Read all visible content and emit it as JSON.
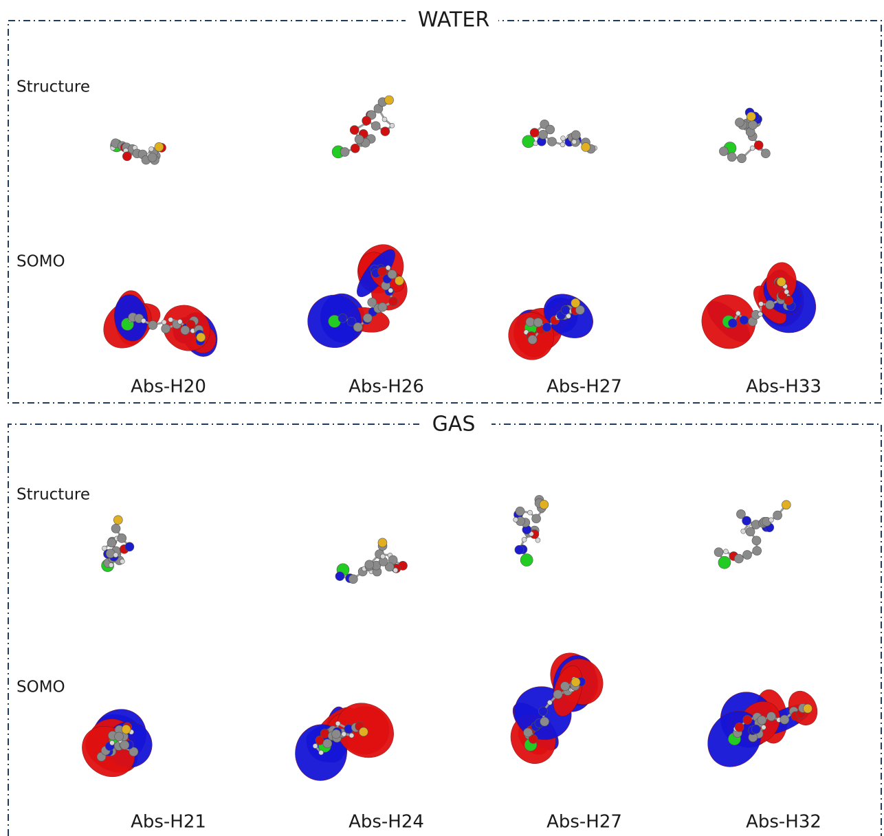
{
  "panels": [
    {
      "title": "WATER",
      "row_labels": [
        "Structure",
        "SOMO"
      ],
      "columns": [
        "Abs-H20",
        "Abs-H26",
        "Abs-H27",
        "Abs-H33"
      ]
    },
    {
      "title": "GAS",
      "row_labels": [
        "Structure",
        "SOMO"
      ],
      "columns": [
        "Abs-H21",
        "Abs-H24",
        "Abs-H27",
        "Abs-H32"
      ]
    }
  ]
}
